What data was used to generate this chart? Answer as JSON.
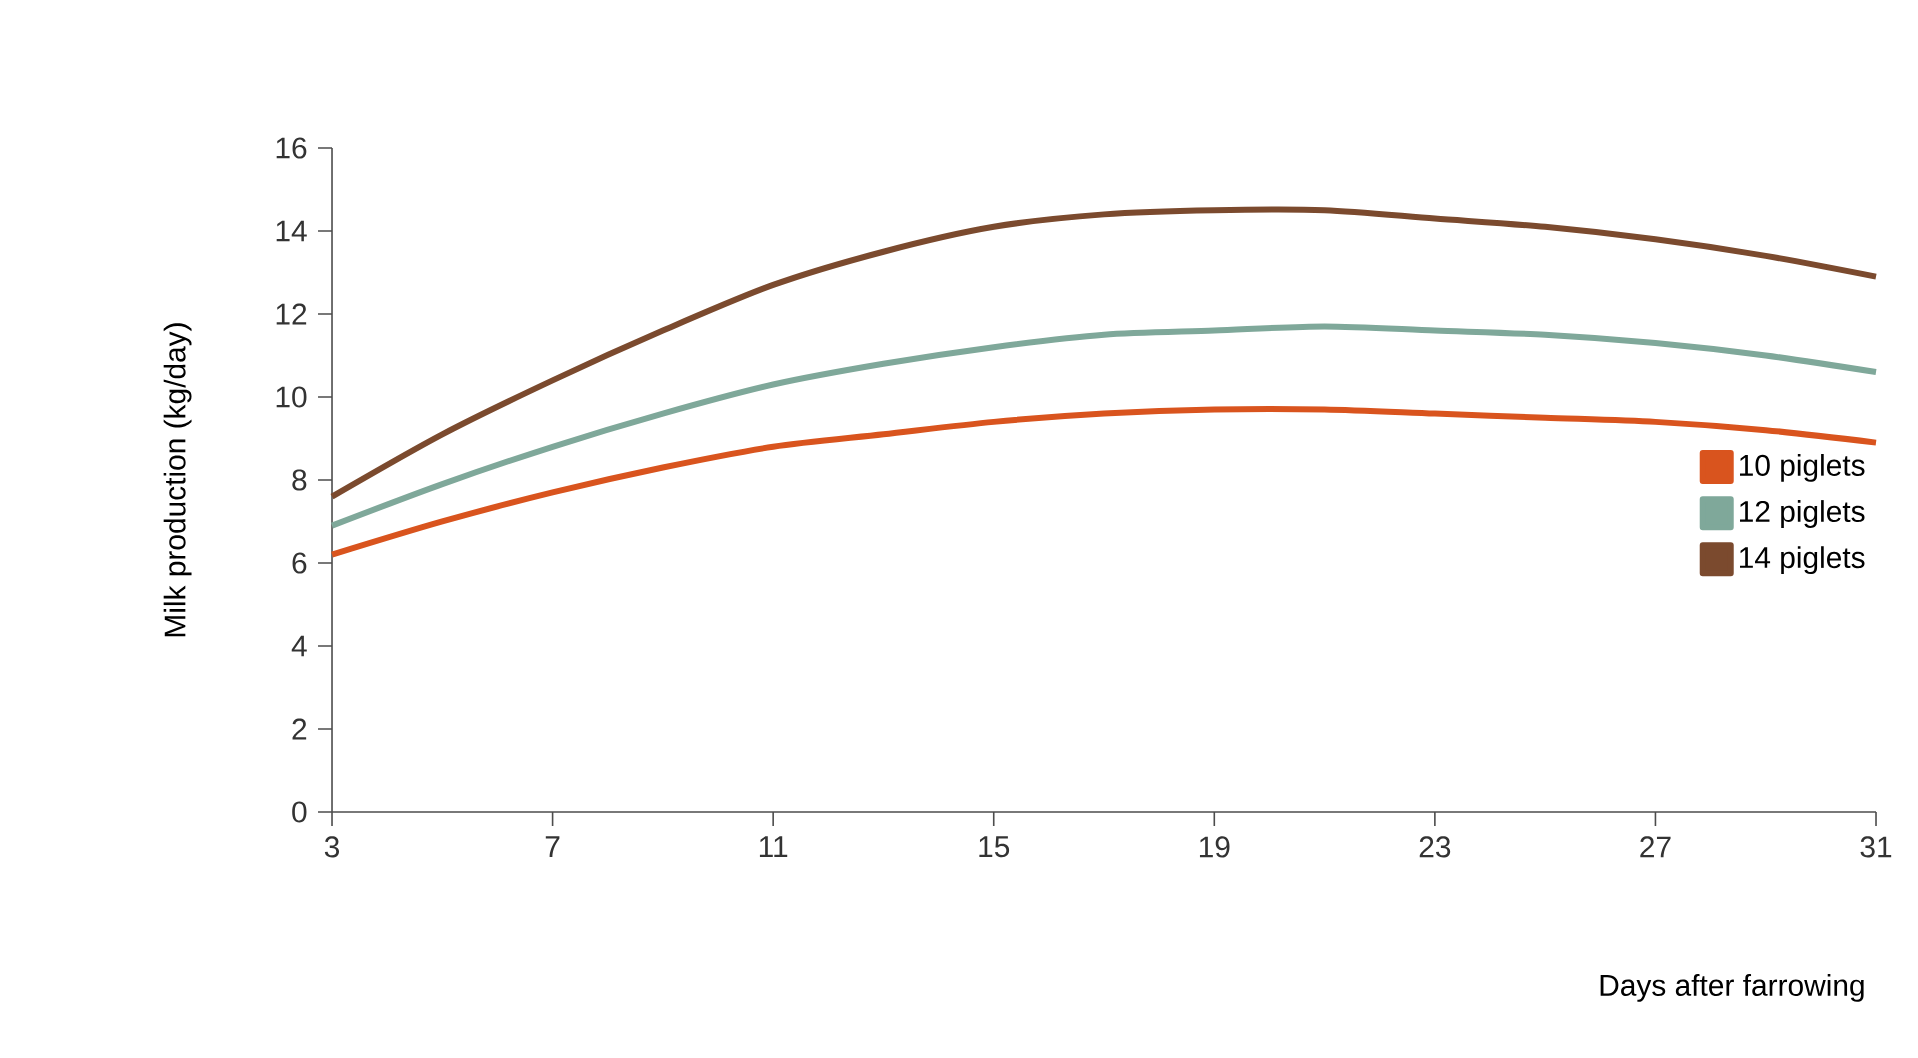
{
  "chart_data": {
    "type": "line",
    "xlabel": "Days after farrowing",
    "ylabel": "Milk production (kg/day)",
    "x": [
      3,
      5,
      7,
      9,
      11,
      13,
      15,
      17,
      19,
      21,
      23,
      25,
      27,
      29,
      31
    ],
    "series": [
      {
        "name": "10 piglets",
        "color": "#d9541e",
        "values": [
          6.2,
          7.0,
          7.7,
          8.3,
          8.8,
          9.1,
          9.4,
          9.6,
          9.7,
          9.7,
          9.6,
          9.5,
          9.4,
          9.2,
          8.9
        ]
      },
      {
        "name": "12 piglets",
        "color": "#7fa89a",
        "values": [
          6.9,
          7.9,
          8.8,
          9.6,
          10.3,
          10.8,
          11.2,
          11.5,
          11.6,
          11.7,
          11.6,
          11.5,
          11.3,
          11.0,
          10.6
        ]
      },
      {
        "name": "14 piglets",
        "color": "#7b4a2e",
        "values": [
          7.6,
          9.1,
          10.4,
          11.6,
          12.7,
          13.5,
          14.1,
          14.4,
          14.5,
          14.5,
          14.3,
          14.1,
          13.8,
          13.4,
          12.9
        ]
      }
    ],
    "xlim": [
      3,
      31
    ],
    "ylim": [
      0,
      16
    ],
    "xticks": [
      3,
      7,
      11,
      15,
      19,
      23,
      27,
      31
    ],
    "yticks": [
      0,
      2,
      4,
      6,
      8,
      10,
      12,
      14,
      16
    ],
    "legend": "right",
    "grid": false,
    "marker": "none",
    "line_style": "solid"
  }
}
